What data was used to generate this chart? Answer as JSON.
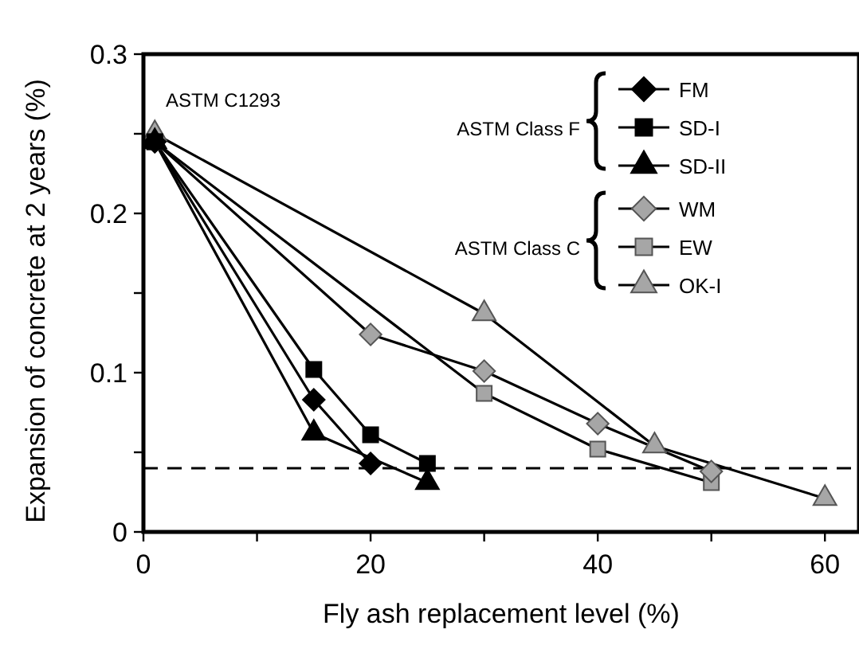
{
  "chart_data": {
    "type": "line",
    "xlabel": "Fly ash replacement level (%)",
    "ylabel": "Expansion of concrete at 2 years (%)",
    "xlim": [
      0,
      63
    ],
    "xticks": [
      0,
      {
        "value": 10,
        "label": null
      },
      20,
      {
        "value": 30,
        "label": null
      },
      40,
      {
        "value": 50,
        "label": null
      },
      60
    ],
    "ylim": [
      0,
      0.3
    ],
    "yticks": [
      0,
      {
        "value": 0.05,
        "label": null
      },
      0.1,
      {
        "value": 0.15,
        "label": null
      },
      0.2,
      {
        "value": 0.25,
        "label": null
      },
      0.3
    ],
    "grid": false,
    "legend": "top right",
    "line_style": "solid",
    "ref_lines": [
      {
        "axis": "y",
        "value": 0.04,
        "line_style": "dashed",
        "color": "#000000"
      }
    ],
    "annotations": [
      "ASTM C1293",
      "ASTM Class F",
      "ASTM Class C"
    ],
    "series": [
      {
        "name": "FM",
        "color": "#000000",
        "marker": "diamond",
        "x": [
          1,
          15,
          20
        ],
        "values": [
          0.245,
          0.083,
          0.043
        ]
      },
      {
        "name": "SD-I",
        "color": "#000000",
        "marker": "square",
        "x": [
          1,
          15,
          20,
          25
        ],
        "values": [
          0.245,
          0.102,
          0.061,
          0.043
        ]
      },
      {
        "name": "SD-II",
        "color": "#000000",
        "marker": "triangle",
        "x": [
          1,
          15,
          25
        ],
        "values": [
          0.245,
          0.062,
          0.031
        ]
      },
      {
        "name": "WM",
        "color": "#a6a6a6",
        "marker": "diamond",
        "x": [
          1,
          20,
          30,
          40,
          50
        ],
        "values": [
          0.245,
          0.124,
          0.101,
          0.068,
          0.038
        ]
      },
      {
        "name": "EW",
        "color": "#a6a6a6",
        "marker": "square",
        "x": [
          1,
          30,
          40,
          50
        ],
        "values": [
          0.245,
          0.087,
          0.052,
          0.031
        ]
      },
      {
        "name": "OK-I",
        "color": "#a6a6a6",
        "marker": "triangle",
        "x": [
          1,
          30,
          45,
          60
        ],
        "values": [
          0.25,
          0.137,
          0.054,
          0.021
        ]
      }
    ]
  }
}
